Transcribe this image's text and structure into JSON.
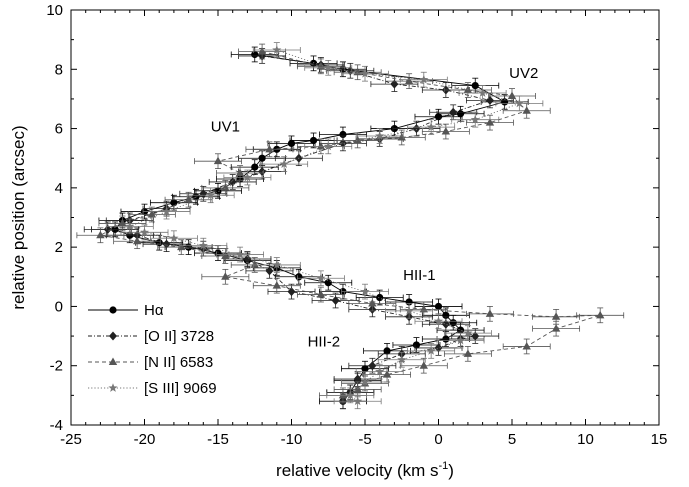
{
  "chart_data": {
    "type": "scatter",
    "title": "",
    "xlabel": "relative velocity (km s",
    "xlabel_sup": "-1",
    "xlabel_close": ")",
    "ylabel": "relative position (arcsec)",
    "xlim": [
      -25,
      15
    ],
    "ylim": [
      -4,
      10
    ],
    "xticks": [
      -25,
      -20,
      -15,
      -10,
      -5,
      0,
      5,
      10,
      15
    ],
    "yticks": [
      -4,
      -2,
      0,
      2,
      4,
      6,
      8,
      10
    ],
    "legend_position": "lower-left",
    "annotations": [
      {
        "text": "UV2",
        "x": 5.8,
        "y": 7.7
      },
      {
        "text": "UV1",
        "x": -14.5,
        "y": 5.9
      },
      {
        "text": "HII-1",
        "x": -1.3,
        "y": 0.9
      },
      {
        "text": "HII-2",
        "x": -7.8,
        "y": -1.35
      }
    ],
    "series": [
      {
        "name": "Hα",
        "marker": "circle",
        "line": "solid",
        "color": "#000000",
        "xerr": 1.6,
        "yerr": 0.25,
        "points": [
          [
            -12.5,
            8.5
          ],
          [
            -8.5,
            8.2
          ],
          [
            -6.5,
            8.0
          ],
          [
            2.5,
            7.45
          ],
          [
            4.5,
            6.9
          ],
          [
            1.5,
            6.5
          ],
          [
            0.0,
            6.4
          ],
          [
            -3.0,
            6.0
          ],
          [
            -6.5,
            5.8
          ],
          [
            -8.5,
            5.6
          ],
          [
            -10.0,
            5.5
          ],
          [
            -11.0,
            5.3
          ],
          [
            -12.0,
            5.0
          ],
          [
            -12.5,
            4.7
          ],
          [
            -13.5,
            4.3
          ],
          [
            -15.0,
            3.9
          ],
          [
            -16.5,
            3.7
          ],
          [
            -18.0,
            3.5
          ],
          [
            -20.0,
            3.2
          ],
          [
            -21.5,
            2.9
          ],
          [
            -22.0,
            2.6
          ],
          [
            -21.0,
            2.4
          ],
          [
            -19.0,
            2.15
          ],
          [
            -17.0,
            2.0
          ],
          [
            -15.0,
            1.8
          ],
          [
            -13.0,
            1.55
          ],
          [
            -11.0,
            1.3
          ],
          [
            -9.5,
            1.0
          ],
          [
            -7.5,
            0.8
          ],
          [
            -6.5,
            0.5
          ],
          [
            -4.0,
            0.3
          ],
          [
            -2.0,
            0.15
          ],
          [
            0.0,
            0.0
          ],
          [
            0.5,
            -0.3
          ],
          [
            1.0,
            -0.55
          ],
          [
            1.5,
            -0.8
          ],
          [
            0.5,
            -1.1
          ],
          [
            -1.5,
            -1.3
          ],
          [
            -3.5,
            -1.5
          ],
          [
            -5.0,
            -2.1
          ],
          [
            -5.5,
            -2.5
          ],
          [
            -6.0,
            -2.9
          ],
          [
            -6.5,
            -3.2
          ]
        ]
      },
      {
        "name": "[O II] 3728",
        "marker": "diamond",
        "line": "dashdot",
        "color": "#222222",
        "xerr": 1.6,
        "yerr": 0.25,
        "points": [
          [
            -12.0,
            8.45
          ],
          [
            -8.0,
            8.15
          ],
          [
            -6.0,
            7.95
          ],
          [
            -3.0,
            7.5
          ],
          [
            0.5,
            7.3
          ],
          [
            3.5,
            6.95
          ],
          [
            1.0,
            6.55
          ],
          [
            -1.5,
            6.0
          ],
          [
            -4.0,
            5.65
          ],
          [
            -6.5,
            5.5
          ],
          [
            -9.5,
            5.0
          ],
          [
            -12.0,
            4.55
          ],
          [
            -14.0,
            4.2
          ],
          [
            -16.0,
            3.8
          ],
          [
            -18.5,
            3.3
          ],
          [
            -21.0,
            2.9
          ],
          [
            -22.5,
            2.6
          ],
          [
            -20.5,
            2.4
          ],
          [
            -18.5,
            2.1
          ],
          [
            -16.0,
            1.95
          ],
          [
            -13.0,
            1.6
          ],
          [
            -11.5,
            1.2
          ],
          [
            -10.0,
            0.5
          ],
          [
            -7.0,
            0.2
          ],
          [
            -4.5,
            -0.1
          ],
          [
            -2.0,
            -0.35
          ],
          [
            0.5,
            -0.6
          ],
          [
            2.5,
            -1.0
          ],
          [
            1.5,
            -1.1
          ],
          [
            0.0,
            -1.4
          ],
          [
            -2.5,
            -1.6
          ],
          [
            -4.5,
            -2.0
          ],
          [
            -5.5,
            -2.45
          ],
          [
            -6.0,
            -2.9
          ],
          [
            -6.5,
            -3.2
          ]
        ]
      },
      {
        "name": "[N II] 6583",
        "marker": "triangle",
        "line": "dashed",
        "color": "#555555",
        "xerr": 1.6,
        "yerr": 0.25,
        "points": [
          [
            -12.0,
            8.6
          ],
          [
            -8.0,
            8.1
          ],
          [
            -5.5,
            7.9
          ],
          [
            -2.0,
            7.6
          ],
          [
            2.0,
            7.3
          ],
          [
            5.0,
            7.1
          ],
          [
            6.0,
            6.6
          ],
          [
            3.5,
            6.2
          ],
          [
            0.5,
            5.9
          ],
          [
            -2.5,
            5.7
          ],
          [
            -5.5,
            5.6
          ],
          [
            -8.0,
            5.4
          ],
          [
            -11.5,
            5.3
          ],
          [
            -15.0,
            4.9
          ],
          [
            -13.5,
            4.5
          ],
          [
            -14.5,
            4.0
          ],
          [
            -17.0,
            3.6
          ],
          [
            -19.5,
            3.1
          ],
          [
            -21.5,
            2.8
          ],
          [
            -23.0,
            2.4
          ],
          [
            -20.5,
            2.2
          ],
          [
            -17.5,
            2.0
          ],
          [
            -14.5,
            1.7
          ],
          [
            -12.5,
            1.4
          ],
          [
            -14.5,
            1.0
          ],
          [
            -11.0,
            0.7
          ],
          [
            -8.0,
            0.4
          ],
          [
            -4.5,
            0.1
          ],
          [
            -1.0,
            -0.1
          ],
          [
            3.5,
            -0.25
          ],
          [
            8.0,
            -0.35
          ],
          [
            11.0,
            -0.3
          ],
          [
            8.0,
            -0.75
          ],
          [
            6.0,
            -1.35
          ],
          [
            2.0,
            -1.6
          ],
          [
            -1.0,
            -2.0
          ],
          [
            -3.5,
            -2.3
          ],
          [
            -5.0,
            -2.6
          ],
          [
            -5.5,
            -2.8
          ],
          [
            -6.5,
            -3.0
          ]
        ]
      },
      {
        "name": "[S III] 9069",
        "marker": "star",
        "line": "dotted",
        "color": "#777777",
        "xerr": 1.6,
        "yerr": 0.25,
        "points": [
          [
            -11.0,
            8.65
          ],
          [
            -7.5,
            8.05
          ],
          [
            -5.0,
            7.85
          ],
          [
            -1.0,
            7.65
          ],
          [
            3.0,
            7.2
          ],
          [
            5.5,
            6.85
          ],
          [
            2.5,
            6.3
          ],
          [
            -0.5,
            6.05
          ],
          [
            -4.0,
            5.75
          ],
          [
            -7.5,
            5.4
          ],
          [
            -10.5,
            4.8
          ],
          [
            -13.0,
            4.35
          ],
          [
            -15.5,
            3.75
          ],
          [
            -18.5,
            3.2
          ],
          [
            -21.0,
            2.7
          ],
          [
            -20.0,
            2.5
          ],
          [
            -18.0,
            2.3
          ],
          [
            -16.0,
            2.05
          ],
          [
            -13.5,
            1.75
          ],
          [
            -11.0,
            1.4
          ],
          [
            -8.0,
            0.95
          ],
          [
            -5.0,
            0.5
          ],
          [
            -2.0,
            -0.15
          ],
          [
            0.0,
            -0.5
          ],
          [
            2.0,
            -0.9
          ],
          [
            1.5,
            -1.15
          ],
          [
            -0.5,
            -1.5
          ],
          [
            -2.5,
            -1.8
          ],
          [
            -4.0,
            -2.2
          ],
          [
            -5.0,
            -2.55
          ],
          [
            -6.0,
            -3.0
          ],
          [
            -5.5,
            -3.2
          ]
        ]
      }
    ]
  }
}
